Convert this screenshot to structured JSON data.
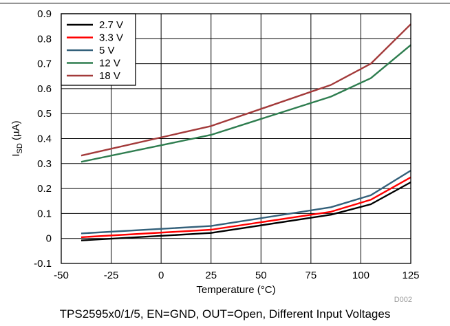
{
  "chart_data": {
    "type": "line",
    "x": [
      -40,
      25,
      85,
      105,
      125
    ],
    "series": [
      {
        "name": "2.7 V",
        "color": "#000000",
        "values": [
          -0.008,
          0.022,
          0.095,
          0.137,
          0.225
        ]
      },
      {
        "name": "3.3 V",
        "color": "#ff0000",
        "values": [
          0.005,
          0.035,
          0.107,
          0.155,
          0.245
        ]
      },
      {
        "name": "5 V",
        "color": "#33607a",
        "values": [
          0.02,
          0.05,
          0.125,
          0.173,
          0.272
        ]
      },
      {
        "name": "12 V",
        "color": "#2e7d4f",
        "values": [
          0.307,
          0.415,
          0.568,
          0.642,
          0.775
        ]
      },
      {
        "name": "18 V",
        "color": "#a33a3a",
        "values": [
          0.332,
          0.45,
          0.615,
          0.7,
          0.858
        ]
      }
    ],
    "xlabel": "Temperature (°C)",
    "ylabel_main": "I",
    "ylabel_sub": "SD",
    "ylabel_unit": " (µA)",
    "xlim": [
      -50,
      125
    ],
    "ylim": [
      -0.1,
      0.9
    ],
    "xticks": [
      -50,
      -25,
      0,
      25,
      50,
      75,
      100,
      125
    ],
    "yticks": [
      -0.1,
      0,
      0.1,
      0.2,
      0.3,
      0.4,
      0.5,
      0.6,
      0.7,
      0.8,
      0.9
    ],
    "xtick_labels": [
      "-50",
      "-25",
      "0",
      "25",
      "50",
      "75",
      "100",
      "125"
    ],
    "ytick_labels": [
      "-0.1",
      "0",
      "0.1",
      "0.2",
      "0.3",
      "0.4",
      "0.5",
      "0.6",
      "0.7",
      "0.8",
      "0.9"
    ],
    "grid": true,
    "legend_position": "top-left",
    "code": "D002"
  },
  "caption": "TPS2595x0/1/5, EN=GND, OUT=Open, Different Input Voltages"
}
